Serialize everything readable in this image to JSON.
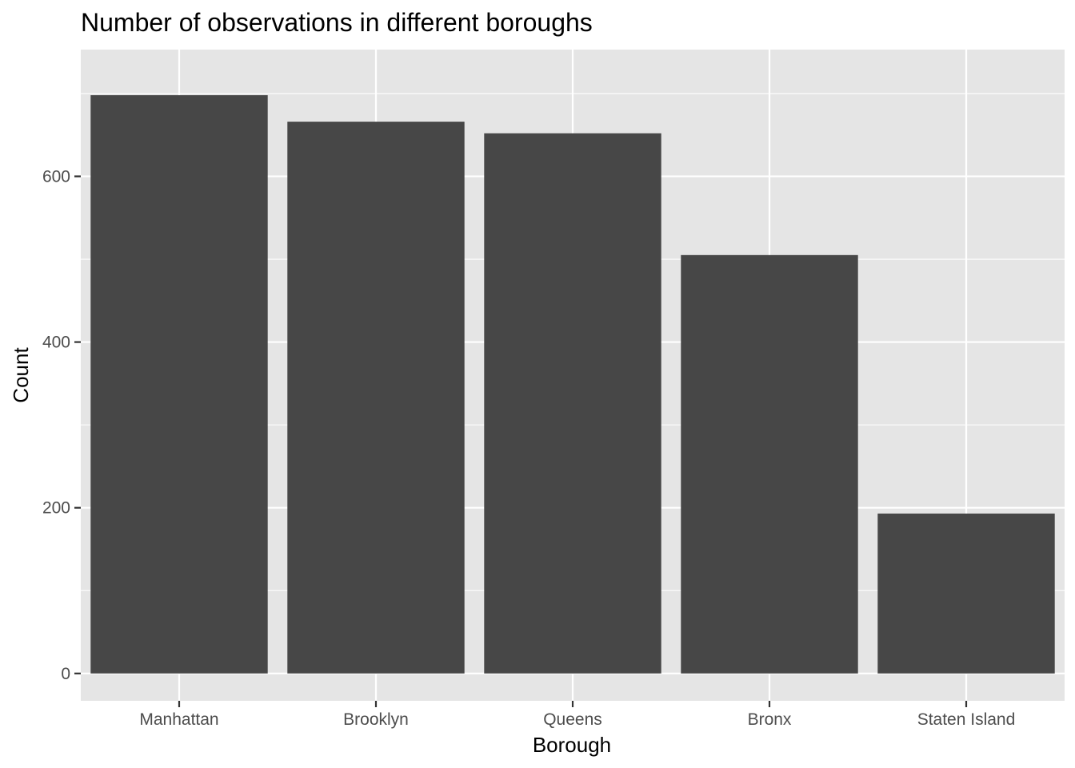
{
  "chart_data": {
    "type": "bar",
    "title": "Number of observations in different boroughs",
    "xlabel": "Borough",
    "ylabel": "Count",
    "categories": [
      "Manhattan",
      "Brooklyn",
      "Queens",
      "Bronx",
      "Staten Island"
    ],
    "values": [
      698,
      666,
      652,
      505,
      193
    ],
    "ylim": [
      -33,
      753
    ],
    "yticks": [
      0,
      200,
      400,
      600
    ],
    "ytick_labels": [
      "0",
      "200",
      "400",
      "600"
    ],
    "grid": true,
    "legend": "none",
    "colors": {
      "bar": "#474747",
      "panel_background": "#e5e5e5",
      "grid": "#ffffff",
      "tick": "#333333"
    }
  }
}
